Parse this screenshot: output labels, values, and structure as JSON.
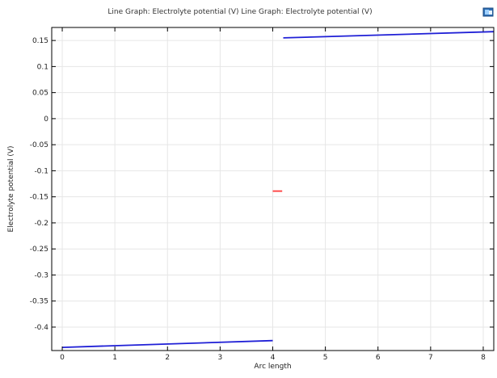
{
  "chart_data": {
    "type": "line",
    "title": "Line Graph: Electrolyte potential (V)  Line Graph: Electrolyte potential (V)",
    "xlabel": "Arc length",
    "ylabel": "Electrolyte potential (V)",
    "xlim": [
      -0.2,
      8.2
    ],
    "ylim": [
      -0.445,
      0.175
    ],
    "x_ticks": [
      0,
      1,
      2,
      3,
      4,
      5,
      6,
      7,
      8
    ],
    "y_ticks": [
      0.15,
      0.1,
      0.05,
      0,
      -0.05,
      -0.1,
      -0.15,
      -0.2,
      -0.25,
      -0.3,
      -0.35,
      -0.4
    ],
    "grid": true,
    "series": [
      {
        "color": "#1f1fd6",
        "points": [
          [
            0.0,
            -0.439
          ],
          [
            4.0,
            -0.426
          ]
        ]
      },
      {
        "color": "#1f1fd6",
        "points": [
          [
            4.2,
            0.155
          ],
          [
            8.2,
            0.167
          ]
        ]
      },
      {
        "color": "#ff3b3b",
        "points": [
          [
            4.0,
            -0.139
          ],
          [
            4.18,
            -0.139
          ]
        ]
      }
    ]
  },
  "toolbar": {
    "corner_icon": "image-export-icon"
  }
}
